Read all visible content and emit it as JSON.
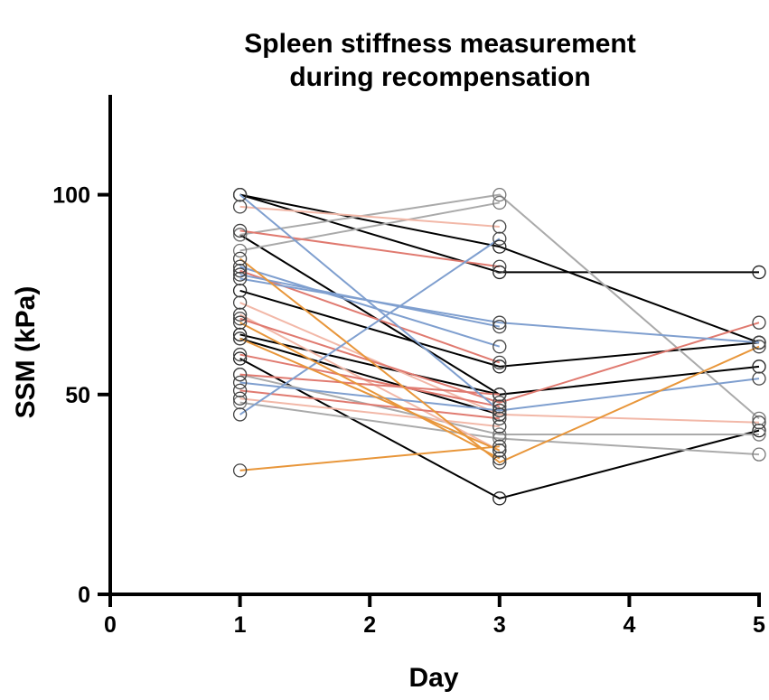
{
  "chart_data": {
    "type": "line",
    "title_lines": [
      "Spleen stiffness measurement",
      "during recompensation"
    ],
    "xlabel": "Day",
    "ylabel": "SSM (kPa)",
    "xlim": [
      0,
      5
    ],
    "ylim": [
      0,
      125
    ],
    "xticks": [
      0,
      1,
      2,
      3,
      4,
      5
    ],
    "xtick_labels": [
      "0",
      "1",
      "2",
      "3",
      "4",
      "5"
    ],
    "yticks": [
      0,
      50,
      100
    ],
    "ytick_labels": [
      "0",
      "50",
      "100"
    ],
    "x": [
      1,
      3,
      5
    ],
    "series": [
      {
        "color": "#000000",
        "values": [
          100,
          87,
          63
        ]
      },
      {
        "color": "#000000",
        "values": [
          100,
          80.6,
          80.6
        ]
      },
      {
        "color": "#000000",
        "values": [
          90,
          50,
          57
        ]
      },
      {
        "color": "#000000",
        "values": [
          76,
          57,
          63
        ]
      },
      {
        "color": "#000000",
        "values": [
          65,
          50,
          null
        ]
      },
      {
        "color": "#000000",
        "values": [
          64,
          45,
          null
        ]
      },
      {
        "color": "#000000",
        "values": [
          59,
          24,
          41
        ]
      },
      {
        "color": "#aaaaaa",
        "values": [
          90,
          100,
          44
        ]
      },
      {
        "color": "#aaaaaa",
        "values": [
          86,
          98,
          null
        ]
      },
      {
        "color": "#aaaaaa",
        "values": [
          55,
          40,
          40
        ]
      },
      {
        "color": "#aaaaaa",
        "values": [
          48,
          39,
          35
        ]
      },
      {
        "color": "#f2b8a8",
        "values": [
          97,
          92,
          null
        ]
      },
      {
        "color": "#f2b8a8",
        "values": [
          73,
          45,
          43
        ]
      },
      {
        "color": "#f2b8a8",
        "values": [
          49,
          42,
          null
        ]
      },
      {
        "color": "#f2b8a8",
        "values": [
          70,
          36,
          null
        ]
      },
      {
        "color": "#e07a70",
        "values": [
          91,
          82,
          null
        ]
      },
      {
        "color": "#e07a70",
        "values": [
          81,
          58,
          null
        ]
      },
      {
        "color": "#e07a70",
        "values": [
          69,
          48,
          68
        ]
      },
      {
        "color": "#e07a70",
        "values": [
          60,
          47,
          null
        ]
      },
      {
        "color": "#e07a70",
        "values": [
          55,
          50,
          null
        ]
      },
      {
        "color": "#e07a70",
        "values": [
          51,
          44,
          null
        ]
      },
      {
        "color": "#7f9fcf",
        "values": [
          100,
          46,
          null
        ]
      },
      {
        "color": "#7f9fcf",
        "values": [
          79,
          68,
          63
        ]
      },
      {
        "color": "#7f9fcf",
        "values": [
          80,
          67,
          null
        ]
      },
      {
        "color": "#7f9fcf",
        "values": [
          45,
          89,
          null
        ]
      },
      {
        "color": "#7f9fcf",
        "values": [
          53,
          46,
          54
        ]
      },
      {
        "color": "#7f9fcf",
        "values": [
          82,
          62,
          null
        ]
      },
      {
        "color": "#e8963a",
        "values": [
          84,
          33,
          62
        ]
      },
      {
        "color": "#e8963a",
        "values": [
          68,
          34,
          null
        ]
      },
      {
        "color": "#e8963a",
        "values": [
          64,
          36,
          null
        ]
      },
      {
        "color": "#e8963a",
        "values": [
          31,
          37,
          null
        ]
      }
    ]
  }
}
